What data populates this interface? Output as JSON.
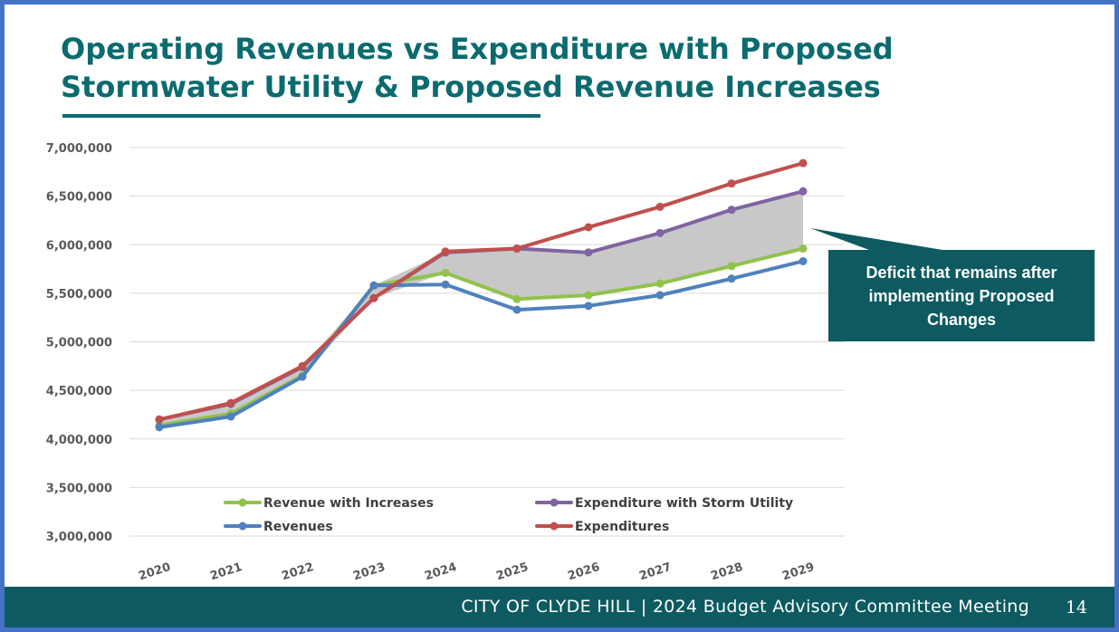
{
  "slide": {
    "title_line1": "Operating Revenues vs Expenditure with Proposed",
    "title_line2": "Stormwater Utility & Proposed Revenue Increases",
    "footer_text": "CITY OF CLYDE HILL | 2024 Budget Advisory Committee Meeting",
    "page_number": "14"
  },
  "chart_data": {
    "type": "line",
    "x": [
      "2020",
      "2021",
      "2022",
      "2023",
      "2024",
      "2025",
      "2026",
      "2027",
      "2028",
      "2029"
    ],
    "ylim": [
      3000000,
      7000000
    ],
    "y_ticks": [
      "3,000,000",
      "3,500,000",
      "4,000,000",
      "4,500,000",
      "5,000,000",
      "5,500,000",
      "6,000,000",
      "6,500,000",
      "7,000,000"
    ],
    "grid": true,
    "legend_position": "bottom-inside",
    "series": [
      {
        "name": "Revenue with Increases",
        "color": "#92c14c",
        "values": [
          4140000,
          4260000,
          4650000,
          5580000,
          5710000,
          5440000,
          5480000,
          5600000,
          5780000,
          5960000
        ]
      },
      {
        "name": "Expenditure with Storm Utility",
        "color": "#8064a2",
        "values": [
          4200000,
          4360000,
          4740000,
          5450000,
          5920000,
          5960000,
          5920000,
          6120000,
          6360000,
          6550000
        ]
      },
      {
        "name": "Revenues",
        "color": "#4f81bd",
        "values": [
          4120000,
          4230000,
          4640000,
          5580000,
          5590000,
          5330000,
          5370000,
          5480000,
          5650000,
          5830000
        ]
      },
      {
        "name": "Expenditures",
        "color": "#c0504d",
        "values": [
          4200000,
          4370000,
          4750000,
          5450000,
          5930000,
          5960000,
          6180000,
          6390000,
          6630000,
          6840000
        ]
      }
    ],
    "shaded_gap": {
      "color": "#c8c8c8",
      "upper_series": "Expenditure with Storm Utility",
      "lower_series": "Revenue with Increases"
    },
    "annotation": {
      "text_line1": "Deficit that remains after",
      "text_line2": "implementing Proposed",
      "text_line3": "Changes",
      "box_color": "#0d5a61"
    }
  }
}
